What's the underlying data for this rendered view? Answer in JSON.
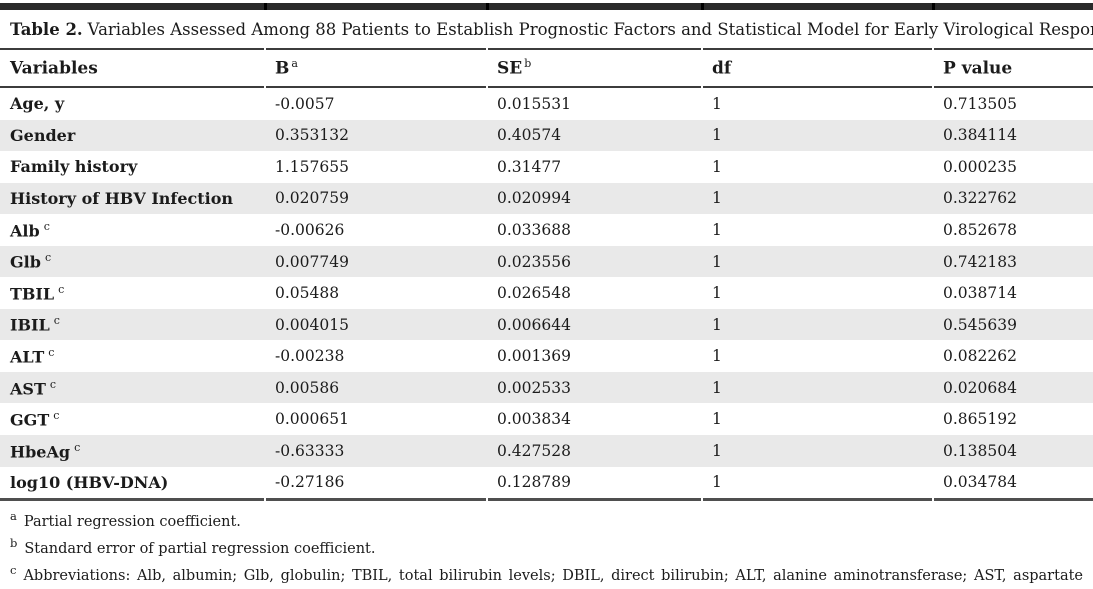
{
  "title": {
    "label": "Table 2.",
    "text": "Variables Assessed Among 88 Patients to Establish Prognostic Factors and Statistical Model for Early Virological Response"
  },
  "table": {
    "columns": [
      {
        "label": "Variables",
        "sup": ""
      },
      {
        "label": "B",
        "sup": "a"
      },
      {
        "label": "SE",
        "sup": "b"
      },
      {
        "label": "df",
        "sup": ""
      },
      {
        "label": "P value",
        "sup": ""
      }
    ],
    "rows": [
      {
        "variable": "Age, y",
        "variable_sup": "",
        "b": "-0.0057",
        "se": "0.015531",
        "df": "1",
        "p": "0.713505"
      },
      {
        "variable": "Gender",
        "variable_sup": "",
        "b": "0.353132",
        "se": "0.40574",
        "df": "1",
        "p": "0.384114"
      },
      {
        "variable": "Family history",
        "variable_sup": "",
        "b": "1.157655",
        "se": "0.31477",
        "df": "1",
        "p": "0.000235"
      },
      {
        "variable": "History of HBV Infection",
        "variable_sup": "",
        "b": "0.020759",
        "se": "0.020994",
        "df": "1",
        "p": "0.322762"
      },
      {
        "variable": "Alb",
        "variable_sup": "c",
        "b": "-0.00626",
        "se": "0.033688",
        "df": "1",
        "p": "0.852678"
      },
      {
        "variable": "Glb",
        "variable_sup": "c",
        "b": "0.007749",
        "se": "0.023556",
        "df": "1",
        "p": "0.742183"
      },
      {
        "variable": "TBIL",
        "variable_sup": "c",
        "b": "0.05488",
        "se": "0.026548",
        "df": "1",
        "p": "0.038714"
      },
      {
        "variable": "IBIL",
        "variable_sup": "c",
        "b": "0.004015",
        "se": "0.006644",
        "df": "1",
        "p": "0.545639"
      },
      {
        "variable": "ALT",
        "variable_sup": "c",
        "b": "-0.00238",
        "se": "0.001369",
        "df": "1",
        "p": "0.082262"
      },
      {
        "variable": "AST",
        "variable_sup": "c",
        "b": "0.00586",
        "se": "0.002533",
        "df": "1",
        "p": "0.020684"
      },
      {
        "variable": "GGT",
        "variable_sup": "c",
        "b": "0.000651",
        "se": "0.003834",
        "df": "1",
        "p": "0.865192"
      },
      {
        "variable": "HbeAg",
        "variable_sup": "c",
        "b": "-0.63333",
        "se": "0.427528",
        "df": "1",
        "p": "0.138504"
      },
      {
        "variable": "log10 (HBV-DNA)",
        "variable_sup": "",
        "b": "-0.27186",
        "se": "0.128789",
        "df": "1",
        "p": "0.034784"
      }
    ]
  },
  "footnotes": [
    {
      "marker": "a",
      "text": "Partial regression coefficient."
    },
    {
      "marker": "b",
      "text": "Standard error of partial regression coefficient."
    },
    {
      "marker": "c",
      "text": "Abbreviations: Alb, albumin; Glb, globulin; TBIL, total bilirubin levels; DBIL, direct bilirubin; ALT, alanine aminotransferase; AST, aspartate aminotransferase; GGT, gamma-glutamyl transpeptidase; HBeAg, hepatitis B e-antigen."
    }
  ],
  "colors": {
    "text": "#1b1b1b",
    "row_shade": "#e9e9e9",
    "top_bar": "#2a2a2a",
    "rule": "#3c3c3c"
  }
}
